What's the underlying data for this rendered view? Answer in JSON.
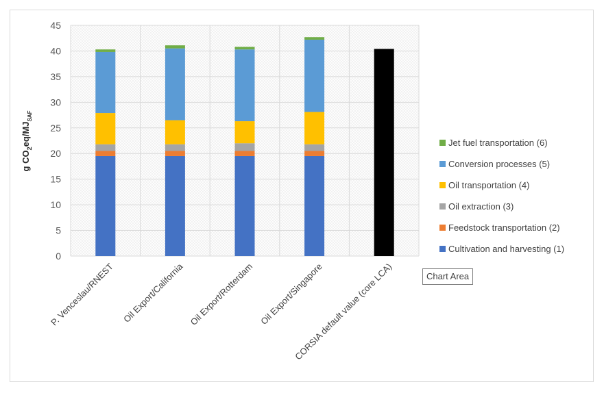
{
  "chart_data": {
    "type": "bar",
    "stacked": true,
    "categories": [
      "P. Venceslau/RNEST",
      "Oil Export/California",
      "Oil Export/Rotterdam",
      "Oil Export/Singapore",
      "CORSIA default value (core LCA)"
    ],
    "series": [
      {
        "name": "Cultivation and harvesting (1)",
        "color": "#4472C4",
        "values": [
          19.5,
          19.5,
          19.5,
          19.5,
          0
        ]
      },
      {
        "name": "Feedstock transportation (2)",
        "color": "#ED7D31",
        "values": [
          1.0,
          1.0,
          1.0,
          1.0,
          0
        ]
      },
      {
        "name": "Oil extraction (3)",
        "color": "#A5A5A5",
        "values": [
          1.3,
          1.3,
          1.5,
          1.3,
          0
        ]
      },
      {
        "name": "Oil transportation (4)",
        "color": "#FFC000",
        "values": [
          6.1,
          4.7,
          4.3,
          6.3,
          0
        ]
      },
      {
        "name": "Conversion processes (5)",
        "color": "#5B9BD5",
        "values": [
          11.9,
          14.0,
          14.0,
          14.1,
          0
        ]
      },
      {
        "name": "Jet fuel transportation (6)",
        "color": "#70AD47",
        "values": [
          0.5,
          0.6,
          0.5,
          0.5,
          0
        ]
      }
    ],
    "default_value": {
      "category": "CORSIA default value (core LCA)",
      "value": 40.4,
      "color": "#000000"
    },
    "ylabel_main": "g CO",
    "ylabel_sub2": "2",
    "ylabel_mid": "eq/MJ",
    "ylabel_subsaf": "SAF",
    "ylim": [
      0,
      45
    ],
    "yticks": [
      "0",
      "5",
      "10",
      "15",
      "20",
      "25",
      "30",
      "35",
      "40",
      "45"
    ],
    "grid": true,
    "legend_position": "right"
  },
  "tooltip": {
    "label": "Chart Area"
  }
}
